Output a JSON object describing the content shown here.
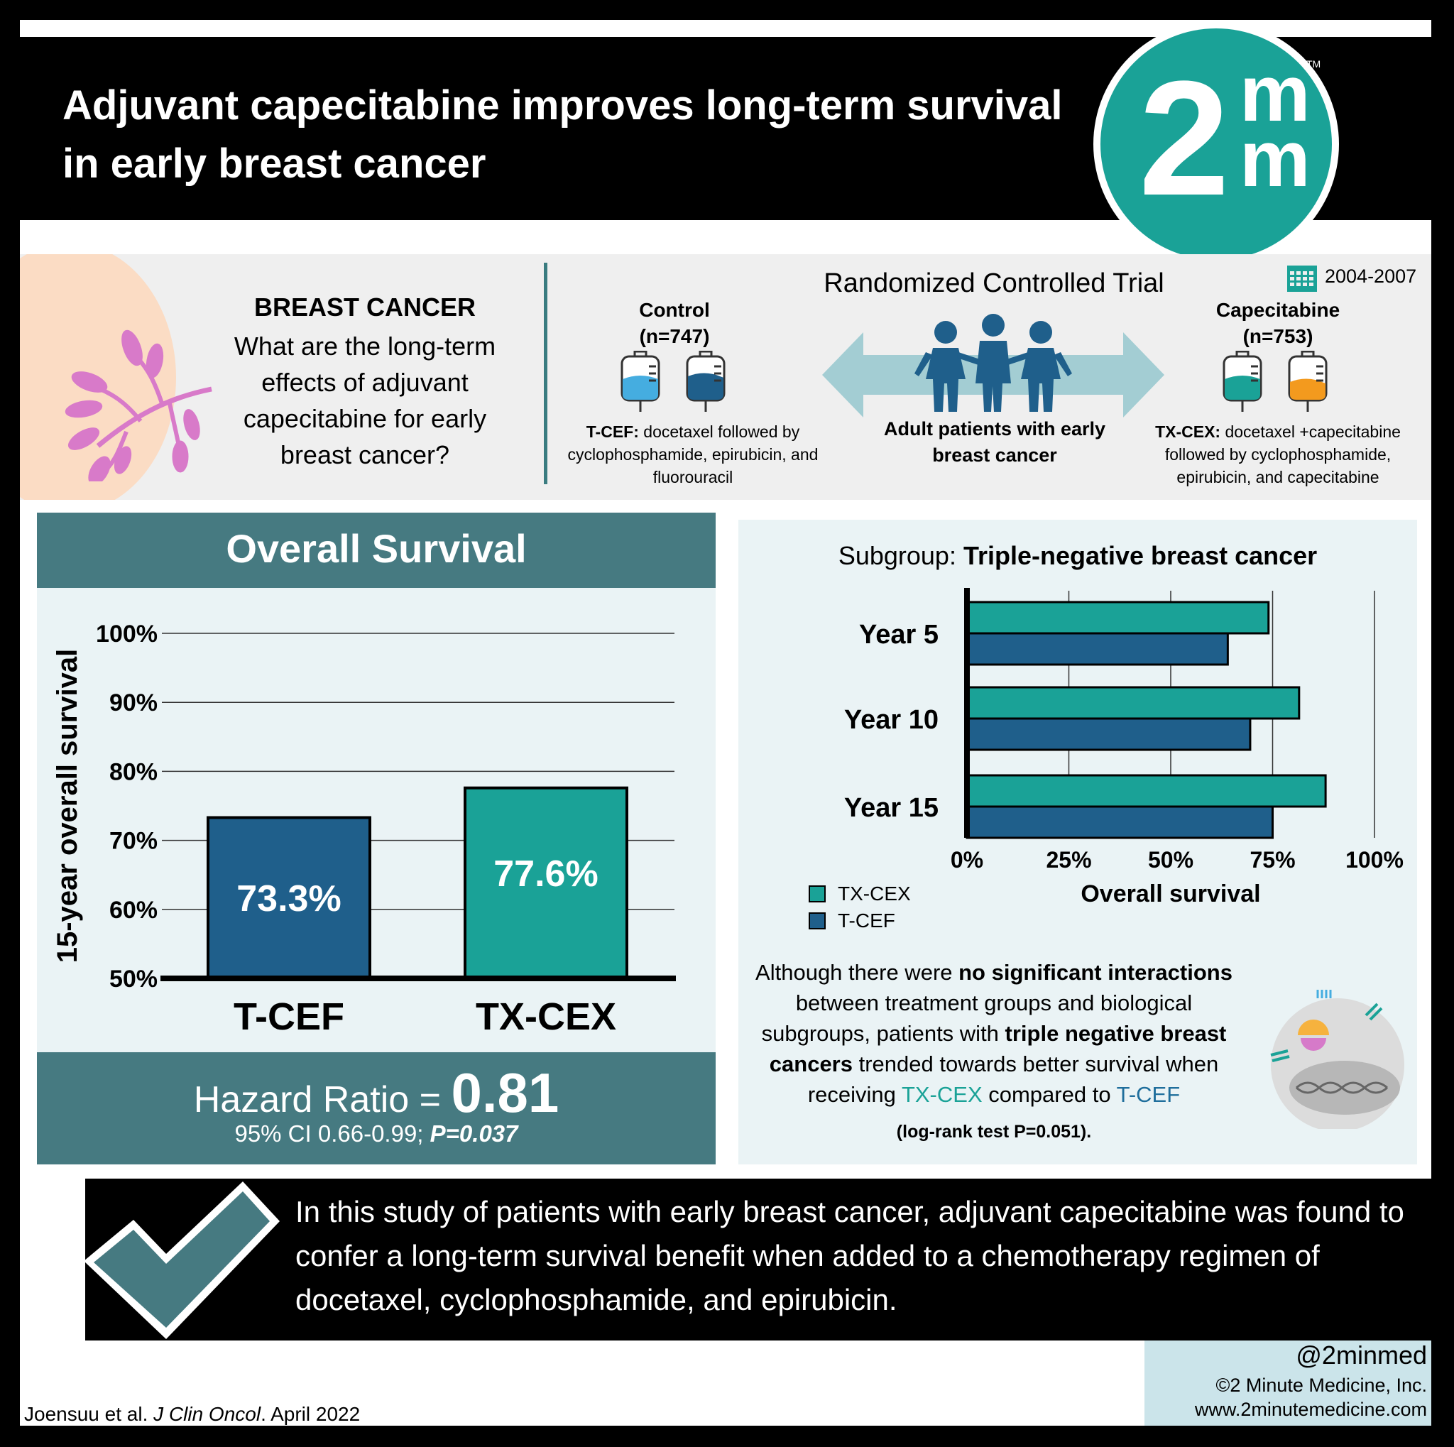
{
  "header": {
    "title": "Adjuvant capecitabine improves long-term survival in early breast cancer"
  },
  "logo": {
    "digit": "2",
    "m_top": "m",
    "m_bottom": "m",
    "tm": "TM"
  },
  "question": {
    "heading": "BREAST CANCER",
    "text": "What are the long-term effects of adjuvant capecitabine for early breast cancer?"
  },
  "trial": {
    "title": "Randomized Controlled Trial",
    "years": "2004-2007",
    "population": "Adult patients with early breast cancer",
    "control": {
      "label": "Control",
      "n": "(n=747)",
      "regimen_name": "T-CEF:",
      "regimen": " docetaxel followed by cyclophosphamide, epirubicin, and fluorouracil"
    },
    "treatment": {
      "label": "Capecitabine",
      "n": "(n=753)",
      "regimen_name": "TX-CEX:",
      "regimen": " docetaxel +capecitabine followed by cyclophosphamide, epirubicin, and capecitabine"
    }
  },
  "colors": {
    "teal": "#1aa297",
    "navy": "#1f5f8b",
    "panel": "#467a81",
    "arrow": "#a3cdd3"
  },
  "overall": {
    "title": "Overall Survival",
    "hazard_label": "Hazard Ratio = ",
    "hazard_value": "0.81",
    "ci_text": "95% CI  0.66-0.99; ",
    "p_text": "P=0.037"
  },
  "subgroup": {
    "title_prefix": "Subgroup: ",
    "title_bold": "Triple-negative breast cancer"
  },
  "note": {
    "p1": "Although there were ",
    "b1": "no significant interactions",
    "p2": " between treatment groups and biological subgroups, patients with ",
    "b2": "triple negative breast cancers",
    "p3": " trended towards better survival when receiving ",
    "t1": "TX-CEX",
    "p4": " compared to ",
    "t2": "T-CEF",
    "small": "(log-rank test P=0.051)."
  },
  "conclusion": "In this study of patients with early breast cancer, adjuvant capecitabine was found to confer a long-term survival benefit when added to a chemotherapy regimen of docetaxel, cyclophosphamide, and epirubicin.",
  "footer": {
    "handle": "@2minmed",
    "copyright": "©2 Minute Medicine, Inc.",
    "website": "www.2minutemedicine.com",
    "citation_authors": "Joensuu et al. ",
    "citation_journal": "J Clin Oncol",
    "citation_date": ". April 2022"
  },
  "chart_data": [
    {
      "type": "bar",
      "categories": [
        "T-CEF",
        "TX-CEX"
      ],
      "values": [
        73.3,
        77.6
      ],
      "value_labels": [
        "73.3%",
        "77.6%"
      ],
      "colors": [
        "#1f5f8b",
        "#1aa297"
      ],
      "ylabel": "15-year overall survival",
      "ylim": [
        50,
        100
      ],
      "yticks": [
        "100%",
        "90%",
        "80%",
        "70%",
        "60%",
        "50%"
      ],
      "grid": true
    },
    {
      "type": "bar",
      "orientation": "horizontal",
      "categories": [
        "Year 5",
        "Year 10",
        "Year 15"
      ],
      "series": [
        {
          "name": "TX-CEX",
          "values": [
            74,
            81.5,
            88
          ],
          "color": "#1aa297"
        },
        {
          "name": "T-CEF",
          "values": [
            64,
            69.5,
            75
          ],
          "color": "#1f5f8b"
        }
      ],
      "xlabel": "Overall survival",
      "xlim": [
        0,
        100
      ],
      "xticks": [
        "0%",
        "25%",
        "50%",
        "75%",
        "100%"
      ],
      "legend": "bottom-left",
      "grid": true
    }
  ]
}
